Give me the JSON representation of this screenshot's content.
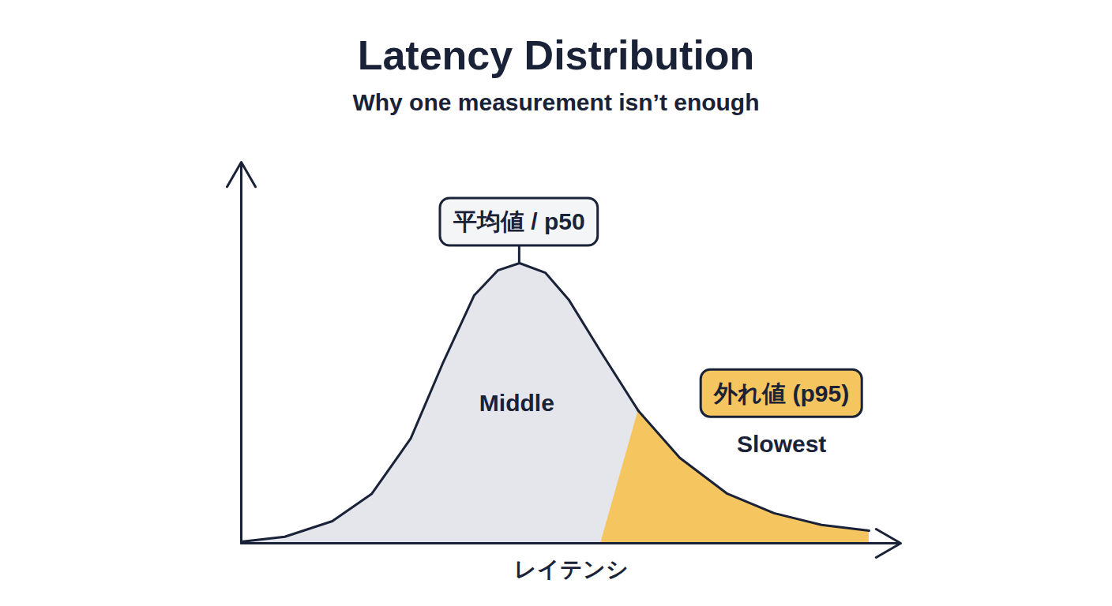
{
  "chart_data": {
    "type": "area",
    "title": "Latency Distribution",
    "subtitle": "Why one measurement isn’t enough",
    "xlabel": "レイテンシ",
    "xlim": [
      0,
      100
    ],
    "ylim": [
      0,
      100
    ],
    "tick_labels": false,
    "x": [
      0,
      6.6,
      13.8,
      19.8,
      25.7,
      30.5,
      35.3,
      38.9,
      42.2,
      46.1,
      49.7,
      54.5,
      60.2,
      66.5,
      73.7,
      80.8,
      88,
      95.2
    ],
    "series": [
      {
        "name": "Middle",
        "color": "#e4e6ec",
        "values": [
          0.4,
          1.7,
          5.8,
          13,
          27.5,
          47,
          65,
          71.6,
          73.5,
          71,
          63.8,
          50.3,
          34.8,
          null,
          null,
          null,
          null,
          null
        ]
      },
      {
        "name": "Slowest",
        "color": "#f5c55f",
        "values": [
          null,
          null,
          null,
          null,
          null,
          null,
          null,
          null,
          null,
          null,
          null,
          null,
          34.8,
          22.4,
          13,
          7.9,
          4.8,
          3.3
        ]
      }
    ],
    "annotations": [
      {
        "text": "平均値 / p50",
        "x": 42.2,
        "y": 73.5
      },
      {
        "text": "外れ値 (p95)",
        "x": 82,
        "y": 39.3
      }
    ]
  }
}
